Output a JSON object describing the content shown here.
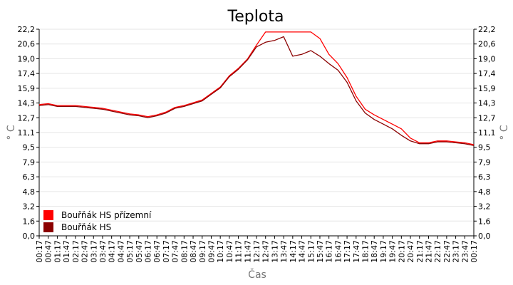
{
  "chart_data": {
    "type": "line",
    "title": "Teplota",
    "xlabel": "Čas",
    "ylabel": "° C",
    "ylabel_right": "° C",
    "ylim": [
      0,
      22.2
    ],
    "yticks": [
      "0,0",
      "1,6",
      "3,2",
      "4,8",
      "6,3",
      "7,9",
      "9,5",
      "11,1",
      "12,7",
      "14,3",
      "15,9",
      "17,4",
      "19,0",
      "20,6",
      "22,2"
    ],
    "x": [
      "00:17",
      "00:47",
      "01:17",
      "01:47",
      "02:17",
      "02:47",
      "03:17",
      "03:47",
      "04:17",
      "04:47",
      "05:17",
      "05:47",
      "06:17",
      "06:47",
      "07:17",
      "07:47",
      "08:17",
      "08:47",
      "09:17",
      "09:47",
      "10:17",
      "10:47",
      "11:17",
      "11:47",
      "12:17",
      "12:47",
      "13:17",
      "13:47",
      "14:17",
      "14:47",
      "15:17",
      "15:47",
      "16:17",
      "16:47",
      "17:17",
      "17:47",
      "18:17",
      "18:47",
      "19:17",
      "19:47",
      "20:17",
      "20:47",
      "21:17",
      "21:47",
      "22:17",
      "22:47",
      "23:17",
      "23:47",
      "00:17"
    ],
    "grid": true,
    "legend_position": "bottom-left",
    "series": [
      {
        "name": "Bouřňák HS přízemní",
        "color": "#ff0000",
        "values": [
          14.1,
          14.2,
          14.0,
          14.0,
          14.0,
          13.9,
          13.8,
          13.7,
          13.5,
          13.3,
          13.1,
          13.0,
          12.8,
          13.0,
          13.3,
          13.8,
          14.0,
          14.3,
          14.6,
          15.3,
          16.0,
          17.2,
          18.0,
          19.0,
          20.5,
          21.9,
          21.9,
          21.9,
          21.9,
          21.9,
          21.9,
          21.2,
          19.5,
          18.5,
          17.0,
          15.0,
          13.6,
          13.0,
          12.5,
          12.0,
          11.5,
          10.5,
          10.0,
          10.0,
          10.2,
          10.2,
          10.1,
          10.0,
          9.8
        ]
      },
      {
        "name": "Bouřňák HS",
        "color": "#8b0000",
        "values": [
          14.0,
          14.1,
          13.9,
          13.9,
          13.9,
          13.8,
          13.7,
          13.6,
          13.4,
          13.2,
          13.0,
          12.9,
          12.7,
          12.9,
          13.2,
          13.7,
          13.9,
          14.2,
          14.5,
          15.2,
          15.9,
          17.1,
          17.9,
          18.9,
          20.3,
          20.8,
          21.0,
          21.4,
          19.3,
          19.5,
          19.9,
          19.3,
          18.5,
          17.8,
          16.5,
          14.5,
          13.2,
          12.5,
          12.0,
          11.5,
          10.8,
          10.2,
          9.9,
          9.9,
          10.1,
          10.1,
          10.0,
          9.9,
          9.7
        ]
      }
    ]
  }
}
